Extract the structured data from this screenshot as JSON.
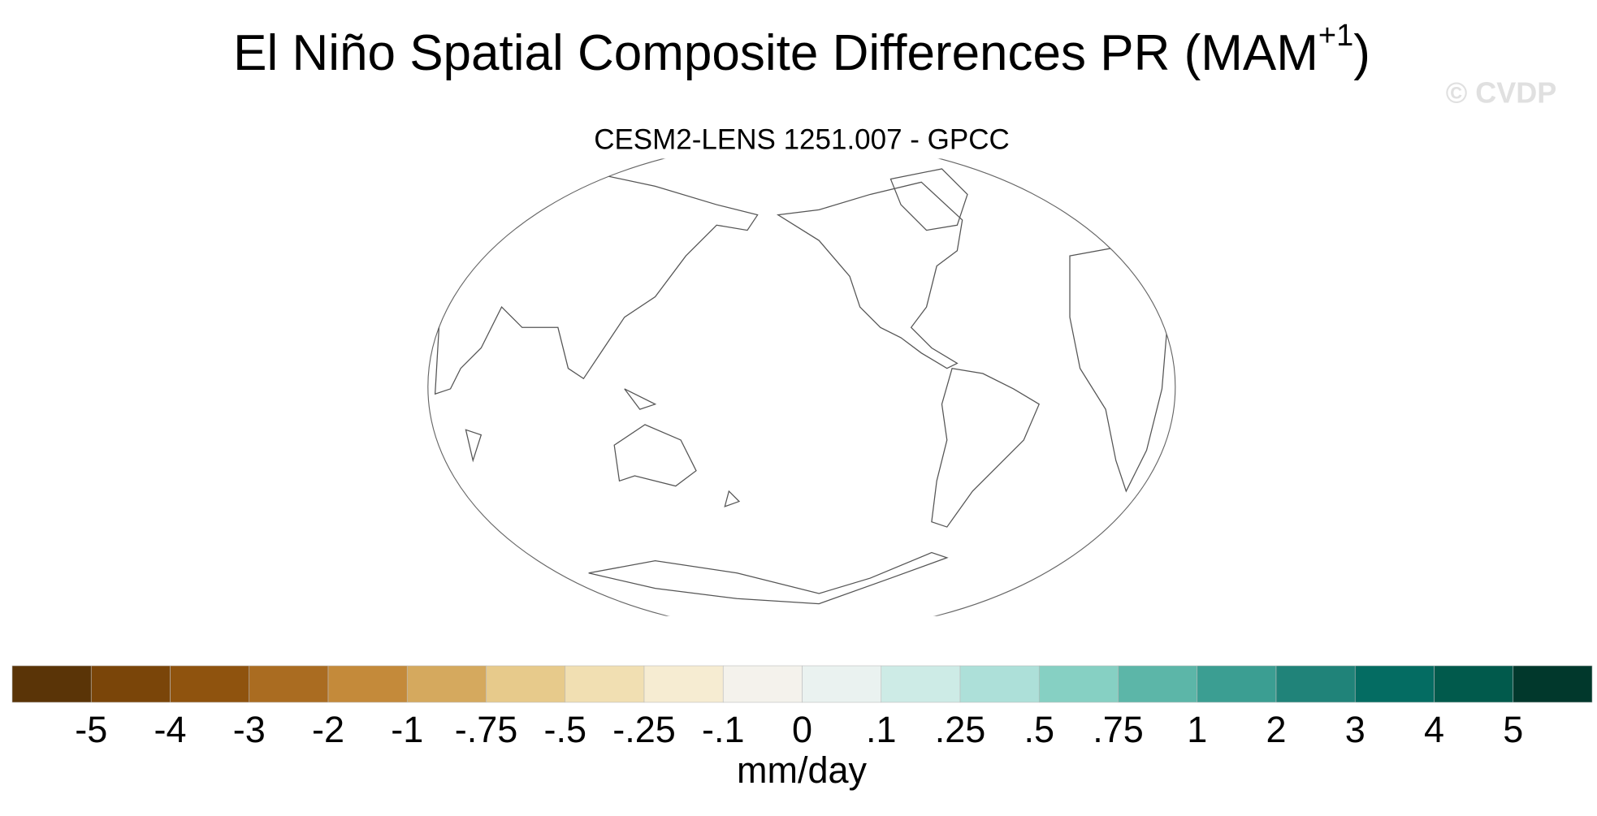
{
  "title": "El Niño Spatial Composite Differences PR (MAM",
  "title_superscript": "+1",
  "title_end": ")",
  "watermark": "© CVDP",
  "subtitle": "CESM2-LENS 1251.007 - GPCC",
  "colorbar": {
    "colors": [
      "#5a3407",
      "#7a4509",
      "#8f530e",
      "#aa6c21",
      "#c48a3a",
      "#d5a95e",
      "#e7ca8b",
      "#f1dfb2",
      "#f6ecd2",
      "#f4f2ec",
      "#eaf2f0",
      "#cdebe6",
      "#ade0d9",
      "#86d0c3",
      "#5cb6a8",
      "#3b9e92",
      "#208379",
      "#046c62",
      "#015a4c",
      "#01382c"
    ],
    "ticks": [
      -5,
      -4,
      -3,
      -2,
      -1,
      {
        "value": -0.75,
        "label": "-.75"
      },
      {
        "value": -0.5,
        "label": "-.5"
      },
      {
        "value": -0.25,
        "label": "-.25"
      },
      {
        "value": -0.1,
        "label": "-.1"
      },
      0,
      {
        "value": 0.1,
        "label": ".1"
      },
      {
        "value": 0.25,
        "label": ".25"
      },
      {
        "value": 0.5,
        "label": ".5"
      },
      {
        "value": 0.75,
        "label": ".75"
      },
      1,
      2,
      3,
      4,
      5
    ],
    "label": "mm/day"
  }
}
